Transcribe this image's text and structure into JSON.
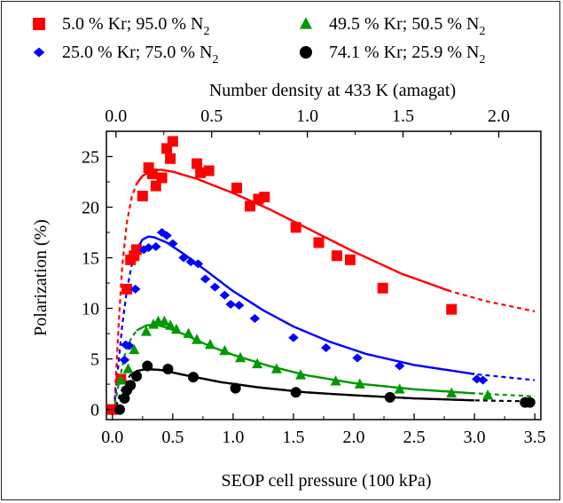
{
  "chart_data": {
    "type": "scatter",
    "xlabel": "SEOP cell pressure (100 kPa)",
    "ylabel": "Polarization (%)",
    "x2label": "Number density at 433 K (amagat)",
    "xlim": [
      -0.05,
      3.55
    ],
    "ylim": [
      -1,
      27.5
    ],
    "x2lim": [
      -0.05,
      2.22
    ],
    "x_ticks": [
      "0.0",
      "0.5",
      "1.0",
      "1.5",
      "2.0",
      "2.5",
      "3.0",
      "3.5"
    ],
    "y_ticks": [
      "0",
      "5",
      "10",
      "15",
      "20",
      "25"
    ],
    "x2_ticks": [
      "0.0",
      "0.5",
      "1.0",
      "1.5",
      "2.0"
    ],
    "grid": false,
    "legend_position": "top",
    "series": [
      {
        "name": "5.0 % Kr; 95.0 % N",
        "name_sub": "2",
        "marker": "square",
        "color": "#ff0000",
        "points": [
          [
            0.07,
            3.0
          ],
          [
            0.12,
            11.9
          ],
          [
            0.15,
            14.8
          ],
          [
            0.18,
            15.2
          ],
          [
            0.2,
            15.8
          ],
          [
            0.25,
            21.1
          ],
          [
            0.3,
            23.9
          ],
          [
            0.33,
            23.3
          ],
          [
            0.36,
            22.1
          ],
          [
            0.41,
            22.9
          ],
          [
            0.45,
            25.8
          ],
          [
            0.5,
            26.5
          ],
          [
            0.48,
            24.8
          ],
          [
            0.7,
            24.3
          ],
          [
            0.73,
            23.4
          ],
          [
            0.8,
            23.6
          ],
          [
            1.03,
            21.9
          ],
          [
            1.14,
            20.1
          ],
          [
            1.21,
            20.8
          ],
          [
            1.26,
            21.0
          ],
          [
            1.52,
            18.0
          ],
          [
            1.71,
            16.5
          ],
          [
            1.86,
            15.2
          ],
          [
            1.97,
            14.8
          ],
          [
            2.24,
            12.0
          ],
          [
            2.81,
            9.9
          ],
          [
            0.0,
            0.0
          ]
        ],
        "fit": [
          [
            0.02,
            1.0
          ],
          [
            0.05,
            8.0
          ],
          [
            0.08,
            14.0
          ],
          [
            0.12,
            18.5
          ],
          [
            0.16,
            21.0
          ],
          [
            0.2,
            22.3
          ],
          [
            0.25,
            23.1
          ],
          [
            0.32,
            23.6
          ],
          [
            0.4,
            23.7
          ],
          [
            0.5,
            23.5
          ],
          [
            0.7,
            22.8
          ],
          [
            1.0,
            21.4
          ],
          [
            1.3,
            19.8
          ],
          [
            1.6,
            18.0
          ],
          [
            2.0,
            15.6
          ],
          [
            2.4,
            13.4
          ],
          [
            2.8,
            11.7
          ],
          [
            3.1,
            10.7
          ],
          [
            3.5,
            9.7
          ]
        ],
        "fit_solid_range": [
          0.2,
          2.8
        ]
      },
      {
        "name": "25.0 % Kr; 75.0 % N",
        "name_sub": "2",
        "marker": "diamond",
        "color": "#0000ff",
        "points": [
          [
            0.1,
            4.9
          ],
          [
            0.11,
            6.4
          ],
          [
            0.14,
            6.3
          ],
          [
            0.19,
            11.9
          ],
          [
            0.26,
            15.8
          ],
          [
            0.3,
            16.0
          ],
          [
            0.36,
            16.1
          ],
          [
            0.41,
            17.5
          ],
          [
            0.45,
            17.2
          ],
          [
            0.5,
            16.4
          ],
          [
            0.59,
            15.0
          ],
          [
            0.65,
            14.6
          ],
          [
            0.71,
            14.4
          ],
          [
            0.77,
            12.9
          ],
          [
            0.85,
            12.1
          ],
          [
            0.93,
            11.3
          ],
          [
            0.98,
            10.4
          ],
          [
            1.05,
            10.3
          ],
          [
            1.18,
            9.0
          ],
          [
            1.5,
            7.1
          ],
          [
            1.77,
            6.1
          ],
          [
            2.03,
            5.1
          ],
          [
            2.38,
            4.3
          ],
          [
            3.02,
            3.0
          ],
          [
            3.07,
            2.9
          ]
        ],
        "fit": [
          [
            0.02,
            0.8
          ],
          [
            0.05,
            4.5
          ],
          [
            0.08,
            8.2
          ],
          [
            0.12,
            11.8
          ],
          [
            0.16,
            14.3
          ],
          [
            0.2,
            15.8
          ],
          [
            0.25,
            16.8
          ],
          [
            0.3,
            17.1
          ],
          [
            0.35,
            17.0
          ],
          [
            0.45,
            16.5
          ],
          [
            0.6,
            15.3
          ],
          [
            0.8,
            13.5
          ],
          [
            1.0,
            11.7
          ],
          [
            1.25,
            9.8
          ],
          [
            1.5,
            8.2
          ],
          [
            1.8,
            6.7
          ],
          [
            2.1,
            5.5
          ],
          [
            2.5,
            4.4
          ],
          [
            3.0,
            3.5
          ],
          [
            3.5,
            2.9
          ]
        ],
        "fit_solid_range": [
          0.2,
          3.1
        ]
      },
      {
        "name": "49.5 % Kr; 50.5 % N",
        "name_sub": "2",
        "marker": "triangle",
        "color": "#009900",
        "points": [
          [
            0.07,
            2.9
          ],
          [
            0.13,
            4.0
          ],
          [
            0.18,
            5.9
          ],
          [
            0.28,
            7.7
          ],
          [
            0.34,
            8.4
          ],
          [
            0.38,
            8.7
          ],
          [
            0.43,
            8.7
          ],
          [
            0.48,
            8.3
          ],
          [
            0.53,
            7.9
          ],
          [
            0.63,
            7.5
          ],
          [
            0.7,
            6.9
          ],
          [
            0.81,
            6.4
          ],
          [
            0.93,
            5.8
          ],
          [
            1.06,
            5.1
          ],
          [
            1.2,
            4.5
          ],
          [
            1.36,
            4.0
          ],
          [
            1.56,
            3.4
          ],
          [
            1.85,
            2.8
          ],
          [
            2.05,
            2.5
          ],
          [
            2.38,
            2.0
          ],
          [
            2.81,
            1.6
          ],
          [
            3.11,
            1.4
          ]
        ],
        "fit": [
          [
            0.02,
            0.5
          ],
          [
            0.06,
            3.0
          ],
          [
            0.1,
            5.3
          ],
          [
            0.15,
            6.9
          ],
          [
            0.2,
            7.8
          ],
          [
            0.28,
            8.3
          ],
          [
            0.35,
            8.4
          ],
          [
            0.45,
            8.1
          ],
          [
            0.6,
            7.4
          ],
          [
            0.8,
            6.3
          ],
          [
            1.0,
            5.4
          ],
          [
            1.3,
            4.3
          ],
          [
            1.6,
            3.4
          ],
          [
            2.0,
            2.6
          ],
          [
            2.5,
            2.0
          ],
          [
            3.0,
            1.6
          ],
          [
            3.5,
            1.3
          ]
        ],
        "fit_solid_range": [
          0.2,
          3.1
        ]
      },
      {
        "name": "74.1 % Kr; 25.9 % N",
        "name_sub": "2",
        "marker": "circle",
        "color": "#000000",
        "points": [
          [
            0.06,
            0.0
          ],
          [
            0.1,
            1.1
          ],
          [
            0.12,
            1.9
          ],
          [
            0.15,
            2.4
          ],
          [
            0.2,
            3.3
          ],
          [
            0.29,
            4.3
          ],
          [
            0.46,
            4.0
          ],
          [
            0.67,
            3.2
          ],
          [
            1.02,
            2.1
          ],
          [
            1.52,
            1.7
          ],
          [
            2.3,
            1.2
          ],
          [
            3.42,
            0.7
          ],
          [
            3.46,
            0.7
          ]
        ],
        "fit": [
          [
            0.03,
            0.3
          ],
          [
            0.06,
            1.4
          ],
          [
            0.1,
            2.6
          ],
          [
            0.15,
            3.4
          ],
          [
            0.2,
            3.8
          ],
          [
            0.28,
            4.0
          ],
          [
            0.4,
            3.9
          ],
          [
            0.6,
            3.4
          ],
          [
            0.9,
            2.7
          ],
          [
            1.2,
            2.2
          ],
          [
            1.6,
            1.7
          ],
          [
            2.0,
            1.4
          ],
          [
            2.5,
            1.1
          ],
          [
            3.0,
            0.9
          ],
          [
            3.5,
            0.8
          ]
        ],
        "fit_solid_range": [
          0.2,
          3.4
        ]
      }
    ]
  }
}
